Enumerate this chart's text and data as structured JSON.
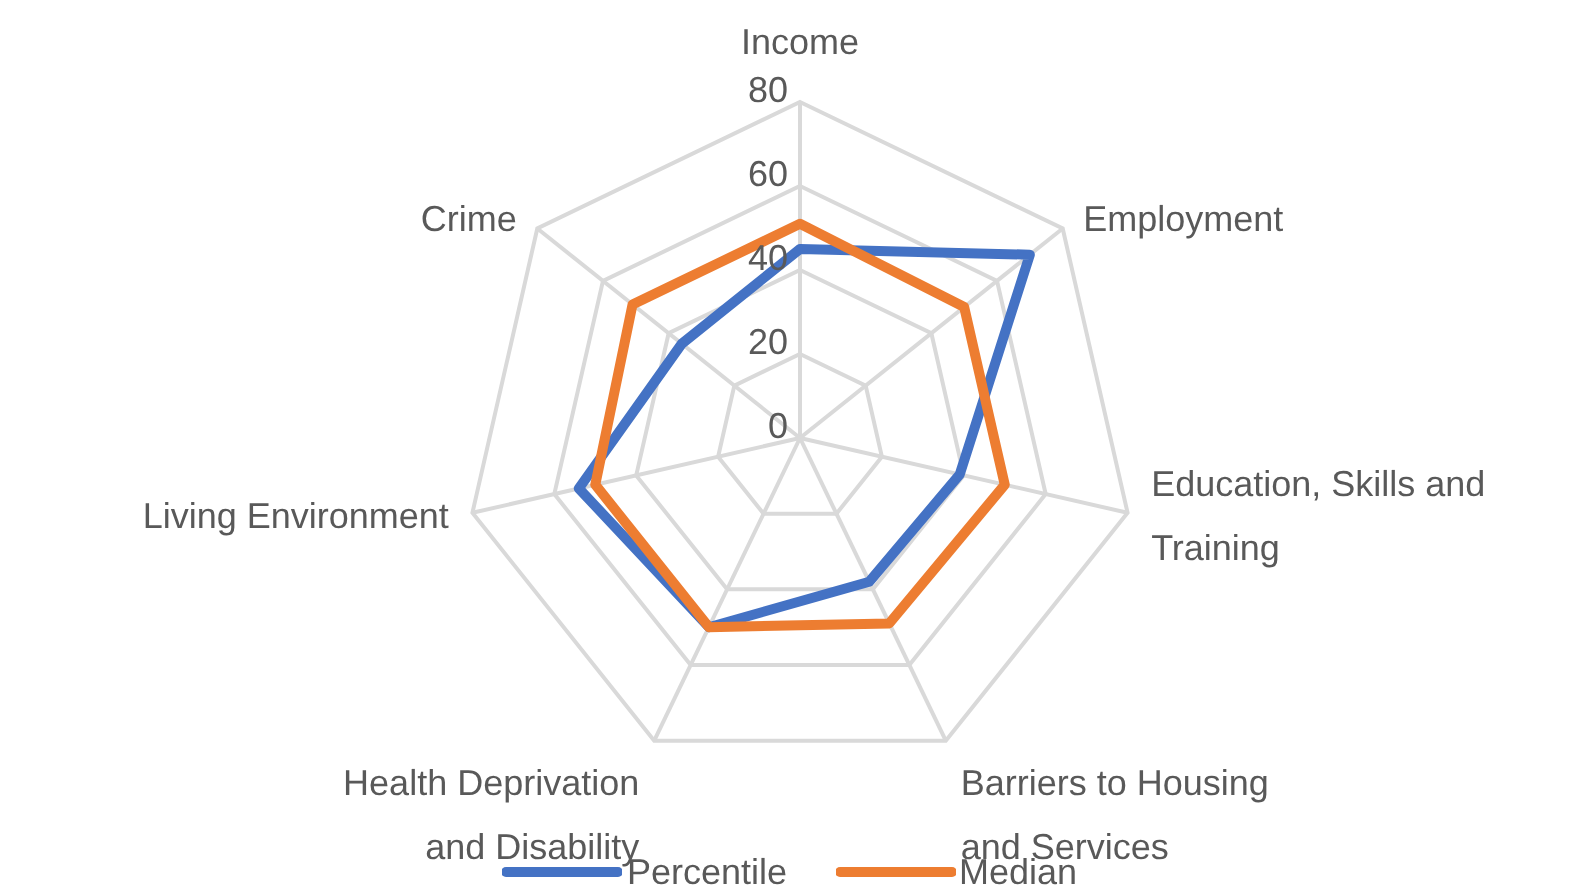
{
  "chart_data": {
    "type": "radar",
    "categories": [
      "Income",
      "Employment",
      "Education, Skills and Training",
      "Barriers to Housing and Services",
      "Health Deprivation and Disability",
      "Living Environment",
      "Crime"
    ],
    "series": [
      {
        "name": "Percentile",
        "color": "#4472c4",
        "values": [
          45,
          70,
          39,
          38,
          50,
          54,
          36
        ]
      },
      {
        "name": "Median",
        "color": "#ed7d31",
        "values": [
          51,
          50,
          50,
          49,
          50,
          50,
          51
        ]
      }
    ],
    "ylim": [
      0,
      80
    ],
    "yticks": [
      0,
      20,
      40,
      60,
      80
    ],
    "grid": true,
    "legend": "bottom",
    "marker": "none"
  }
}
